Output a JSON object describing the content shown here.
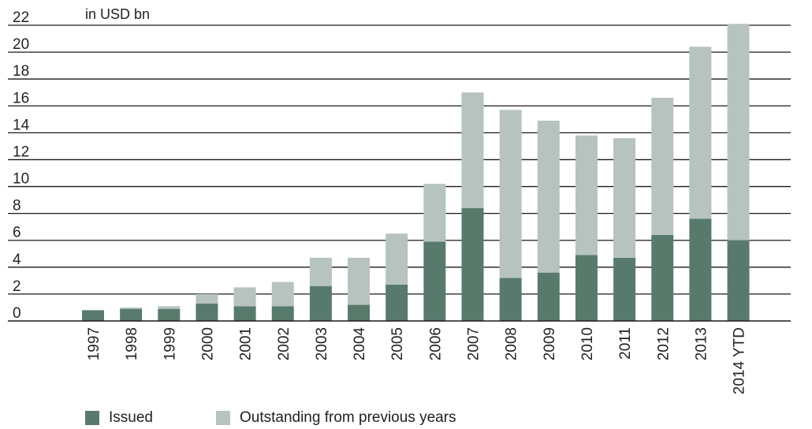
{
  "chart_data": {
    "type": "bar",
    "stacked": true,
    "unit_label": "in USD bn",
    "categories": [
      "1997",
      "1998",
      "1999",
      "2000",
      "2001",
      "2002",
      "2003",
      "2004",
      "2005",
      "2006",
      "2007",
      "2008",
      "2009",
      "2010",
      "2011",
      "2012",
      "2013",
      "2014 YTD"
    ],
    "series": [
      {
        "name": "Issued",
        "color": "#587a6c",
        "values": [
          0.8,
          0.9,
          0.9,
          1.3,
          1.1,
          1.1,
          2.6,
          1.2,
          2.7,
          5.9,
          8.4,
          3.2,
          3.6,
          4.9,
          4.7,
          6.4,
          7.6,
          6.0
        ]
      },
      {
        "name": "Outstanding from previous years",
        "color": "#b6c3be",
        "values": [
          0.0,
          0.1,
          0.2,
          0.7,
          1.4,
          1.8,
          2.1,
          3.5,
          3.8,
          4.3,
          8.6,
          12.5,
          11.3,
          8.9,
          8.9,
          10.2,
          12.8,
          16.1
        ]
      }
    ],
    "ylim": [
      0,
      22
    ],
    "yticks": [
      0,
      2,
      4,
      6,
      8,
      10,
      12,
      14,
      16,
      18,
      20,
      22
    ],
    "grid": true,
    "legend": "bottom-left"
  }
}
